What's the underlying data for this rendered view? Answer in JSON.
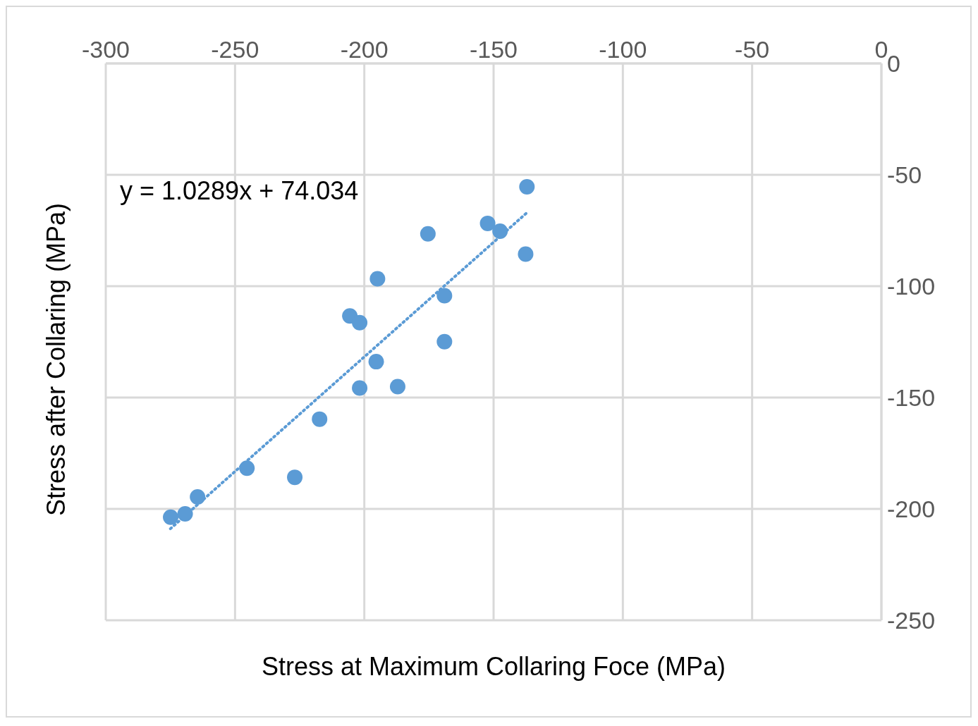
{
  "chart_data": {
    "type": "scatter",
    "xlabel": "Stress at Maximum Collaring Foce (MPa)",
    "ylabel": "Stress after Collaring (MPa)",
    "annotations": [
      "y = 1.0289x + 74.034"
    ],
    "xlim": [
      -300,
      0
    ],
    "xticks": [
      -300,
      -250,
      -200,
      -150,
      -100,
      -50,
      0
    ],
    "ylim": [
      -250,
      0
    ],
    "yticks": [
      -250,
      -200,
      -150,
      -100,
      -50,
      0
    ],
    "grid": true,
    "marker": "circle",
    "series": [
      {
        "color": "#5b9bd5",
        "x": [
          -137.1,
          -152.3,
          -147.5,
          -175.4,
          -137.6,
          -194.9,
          -169.0,
          -205.6,
          -201.8,
          -169.0,
          -195.4,
          -201.8,
          -187.1,
          -217.3,
          -245.4,
          -226.9,
          -264.5,
          -269.3,
          -274.9
        ],
        "values": [
          -55.4,
          -71.8,
          -75.3,
          -76.5,
          -85.6,
          -96.7,
          -104.3,
          -113.4,
          -116.4,
          -124.9,
          -133.9,
          -145.7,
          -145.1,
          -159.7,
          -181.7,
          -185.8,
          -194.6,
          -202.2,
          -203.7
        ]
      },
      {
        "type": "line",
        "color": "#5b9bd5",
        "line_style": "dotted",
        "marker": "none",
        "x": [
          -275,
          -137
        ],
        "values": [
          -208.9,
          -66.9
        ]
      }
    ]
  }
}
